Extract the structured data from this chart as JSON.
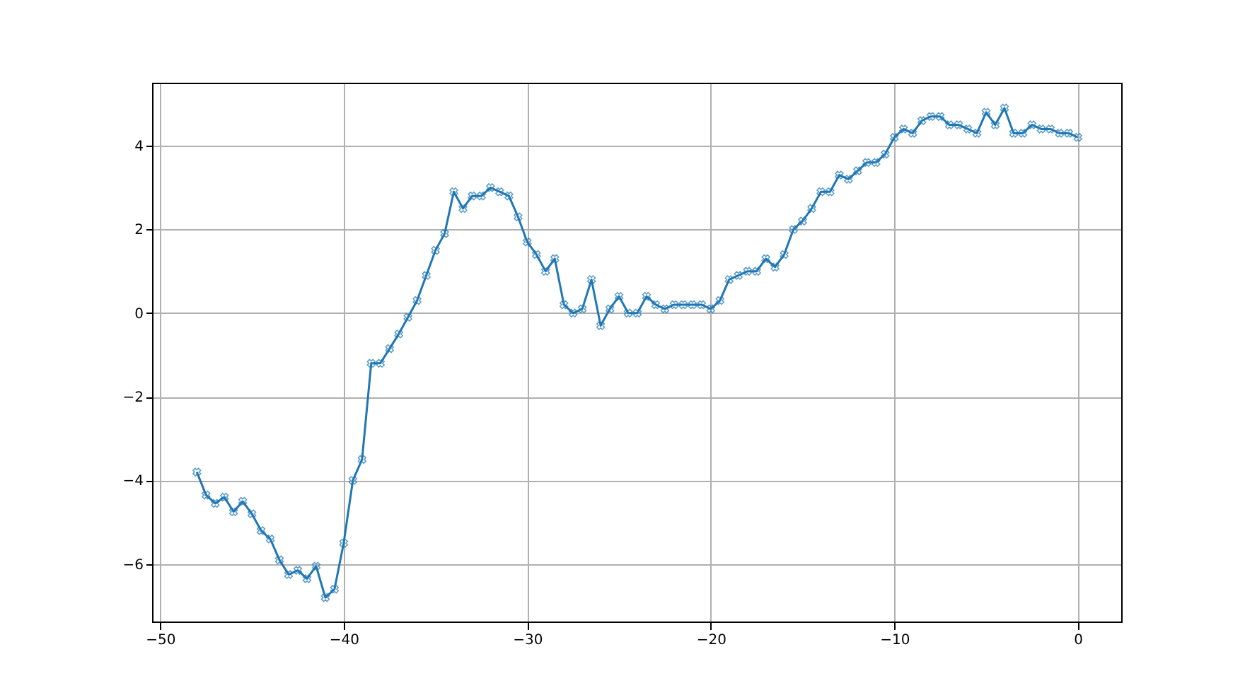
{
  "chart_data": {
    "type": "line",
    "x": [
      -48,
      -47.5,
      -47,
      -46.5,
      -46,
      -45.5,
      -45,
      -44.5,
      -44,
      -43.5,
      -43,
      -42.5,
      -42,
      -41.5,
      -41,
      -40.5,
      -40,
      -39.5,
      -39,
      -38.5,
      -38,
      -37.5,
      -37,
      -36.5,
      -36,
      -35.5,
      -35,
      -34.5,
      -34,
      -33.5,
      -33,
      -32.5,
      -32,
      -31.5,
      -31,
      -30.5,
      -30,
      -29.5,
      -29,
      -28.5,
      -28,
      -27.5,
      -27,
      -26.5,
      -26,
      -25.5,
      -25,
      -24.5,
      -24,
      -23.5,
      -23,
      -22.5,
      -22,
      -21.5,
      -21,
      -20.5,
      -20,
      -19.5,
      -19,
      -18.5,
      -18,
      -17.5,
      -17,
      -16.5,
      -16,
      -15.5,
      -15,
      -14.5,
      -14,
      -13.5,
      -13,
      -12.5,
      -12,
      -11.5,
      -11,
      -10.5,
      -10,
      -9.5,
      -9,
      -8.5,
      -8,
      -7.5,
      -7,
      -6.5,
      -6,
      -5.5,
      -5,
      -4.5,
      -4,
      -3.5,
      -3,
      -2.5,
      -2,
      -1.5,
      -1,
      -0.5,
      0
    ],
    "series": [
      {
        "color": "#1f77b4",
        "values": [
          -3.8,
          -4.35,
          -4.55,
          -4.4,
          -4.75,
          -4.5,
          -4.8,
          -5.2,
          -5.4,
          -5.9,
          -6.25,
          -6.15,
          -6.35,
          -6.05,
          -6.8,
          -6.6,
          -5.5,
          -4.0,
          -3.5,
          -1.2,
          -1.2,
          -0.85,
          -0.5,
          -0.1,
          0.3,
          0.9,
          1.5,
          1.9,
          2.9,
          2.5,
          2.8,
          2.8,
          3.0,
          2.9,
          2.8,
          2.3,
          1.7,
          1.4,
          1.0,
          1.3,
          0.2,
          0.0,
          0.1,
          0.8,
          -0.3,
          0.1,
          0.4,
          0.0,
          0.0,
          0.4,
          0.2,
          0.1,
          0.2,
          0.2,
          0.2,
          0.2,
          0.1,
          0.3,
          0.8,
          0.9,
          1.0,
          1.0,
          1.3,
          1.1,
          1.4,
          2.0,
          2.2,
          2.5,
          2.9,
          2.9,
          3.3,
          3.2,
          3.4,
          3.6,
          3.6,
          3.8,
          4.2,
          4.4,
          4.3,
          4.6,
          4.7,
          4.7,
          4.5,
          4.5,
          4.4,
          4.3,
          4.8,
          4.5,
          4.9,
          4.3,
          4.3,
          4.5,
          4.4,
          4.4,
          4.3,
          4.3,
          4.2
        ]
      }
    ],
    "xlim": [
      -50.4,
      2.4
    ],
    "ylim": [
      -7.39,
      5.49
    ],
    "xticks": [
      -50,
      -40,
      -30,
      -20,
      -10,
      0
    ],
    "yticks": [
      -6,
      -4,
      -2,
      0,
      2,
      4
    ],
    "grid": true,
    "marker": "cross",
    "line_style": "solid"
  }
}
